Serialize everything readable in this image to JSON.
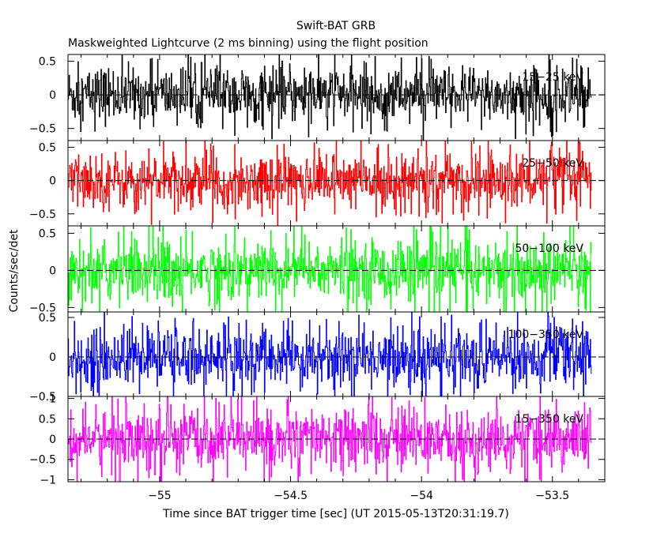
{
  "chart_data": {
    "type": "line",
    "title": "Swift-BAT GRB",
    "subtitle": "Maskweighted Lightcurve (2 ms binning) using the flight position",
    "xlabel": "Time since BAT trigger time [sec] (UT 2015-05-13T20:31:19.7)",
    "ylabel": "Counts/sec/det",
    "xlim": [
      -55.35,
      -53.3
    ],
    "x_start": -55.35,
    "x_end": -53.35,
    "bin_width": 0.002,
    "x_ticks": [
      {
        "value": -55,
        "label": "−55"
      },
      {
        "value": -54.5,
        "label": "−54.5"
      },
      {
        "value": -54,
        "label": "−54"
      },
      {
        "value": -53.5,
        "label": "−53.5"
      }
    ],
    "panels": [
      {
        "band": "15−25 keV",
        "color": "#000000",
        "ylim": [
          -0.68,
          0.6
        ],
        "amplitude": 0.55,
        "y_ticks": [
          {
            "value": 0.5,
            "label": "0.5"
          },
          {
            "value": 0,
            "label": "0"
          },
          {
            "value": -0.5,
            "label": "−0.5"
          }
        ]
      },
      {
        "band": "25−50 keV",
        "color": "#ff0000",
        "ylim": [
          -0.68,
          0.6
        ],
        "amplitude": 0.55,
        "y_ticks": [
          {
            "value": 0.5,
            "label": "0.5"
          },
          {
            "value": 0,
            "label": "0"
          },
          {
            "value": -0.5,
            "label": "−0.5"
          }
        ]
      },
      {
        "band": "50−100 keV",
        "color": "#00ff00",
        "ylim": [
          -0.56,
          0.6
        ],
        "amplitude": 0.55,
        "y_ticks": [
          {
            "value": 0.5,
            "label": "0.5"
          },
          {
            "value": 0,
            "label": "0"
          },
          {
            "value": -0.5,
            "label": "−0.5"
          }
        ]
      },
      {
        "band": "100−350 keV",
        "color": "#0000ff",
        "ylim": [
          -0.5,
          0.57
        ],
        "amplitude": 0.5,
        "y_ticks": [
          {
            "value": 0.5,
            "label": "0.5"
          },
          {
            "value": 0,
            "label": "0"
          },
          {
            "value": -0.5,
            "label": "−0.5"
          }
        ]
      },
      {
        "band": "15−350 keV",
        "color": "#ff00ff",
        "ylim": [
          -1.05,
          1.05
        ],
        "amplitude": 1.0,
        "y_ticks": [
          {
            "value": 1,
            "label": "1"
          },
          {
            "value": 0.5,
            "label": "0.5"
          },
          {
            "value": 0,
            "label": "0"
          },
          {
            "value": -0.5,
            "label": "−0.5"
          },
          {
            "value": -1,
            "label": "−1"
          }
        ]
      }
    ]
  }
}
